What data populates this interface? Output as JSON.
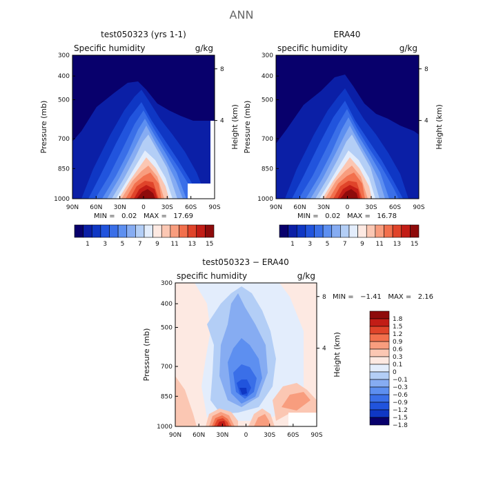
{
  "main_title": "ANN",
  "chart_data": [
    {
      "type": "heatmap",
      "title": "test050323 (yrs 1-1)",
      "variable": "Specific humidity",
      "units": "g/kg",
      "ylabel": "Pressure (mb)",
      "y2label": "Height (km)",
      "x_ticks": [
        "90N",
        "60N",
        "30N",
        "0",
        "30S",
        "60S",
        "90S"
      ],
      "y_ticks": [
        "300",
        "400",
        "500",
        "700",
        "850",
        "1000"
      ],
      "y2_ticks": [
        "8",
        "4"
      ],
      "min_text": "MIN =   0.02   MAX =   17.69",
      "colorbar_labels": [
        "1",
        "3",
        "5",
        "7",
        "9",
        "11",
        "13",
        "15"
      ],
      "colorscale": "blue-to-red",
      "min": 0.02,
      "max": 17.69
    },
    {
      "type": "heatmap",
      "title": "ERA40",
      "variable": "specific humidity",
      "units": "g/kg",
      "ylabel": "Pressure (mb)",
      "y2label": "Height (km)",
      "x_ticks": [
        "90N",
        "60N",
        "30N",
        "0",
        "30S",
        "60S",
        "90S"
      ],
      "y_ticks": [
        "300",
        "400",
        "500",
        "700",
        "850",
        "1000"
      ],
      "y2_ticks": [
        "8",
        "4"
      ],
      "min_text": "MIN =   0.02   MAX =   16.78",
      "colorbar_labels": [
        "1",
        "3",
        "5",
        "7",
        "9",
        "11",
        "13",
        "15"
      ],
      "colorscale": "blue-to-red",
      "min": 0.02,
      "max": 16.78
    },
    {
      "type": "heatmap",
      "title": "test050323 − ERA40",
      "variable": "specific humidity",
      "units": "g/kg",
      "ylabel": "Pressure (mb)",
      "y2label": "Height (km)",
      "x_ticks": [
        "90N",
        "60N",
        "30N",
        "0",
        "30S",
        "60S",
        "90S"
      ],
      "y_ticks": [
        "300",
        "400",
        "500",
        "700",
        "850",
        "1000"
      ],
      "y2_ticks": [
        "8",
        "4"
      ],
      "min_text": "MIN =   −1.41   MAX =   2.16",
      "colorbar_labels": [
        "1.8",
        "1.5",
        "1.2",
        "0.9",
        "0.6",
        "0.3",
        "0.1",
        "0",
        "−0.1",
        "−0.3",
        "−0.6",
        "−0.9",
        "−1.2",
        "−1.5",
        "−1.8"
      ],
      "colorscale": "diverging",
      "min": -1.41,
      "max": 2.16
    }
  ],
  "colors": {
    "seq": [
      "#08006c",
      "#0b1fa6",
      "#0f37c4",
      "#2154dd",
      "#3a6fe8",
      "#5d8ff0",
      "#86acf2",
      "#b3cef6",
      "#e3edfc",
      "#fde9e2",
      "#fbc7b3",
      "#f89d7e",
      "#f2704d",
      "#e0442a",
      "#c21d16",
      "#8e0b0b"
    ],
    "div": [
      "#8e0b0b",
      "#c21d16",
      "#e0442a",
      "#f2704d",
      "#f89d7e",
      "#fbc7b3",
      "#fde9e2",
      "#e3edfc",
      "#b3cef6",
      "#86acf2",
      "#5d8ff0",
      "#3a6fe8",
      "#2154dd",
      "#0f37c4",
      "#08006c"
    ]
  }
}
